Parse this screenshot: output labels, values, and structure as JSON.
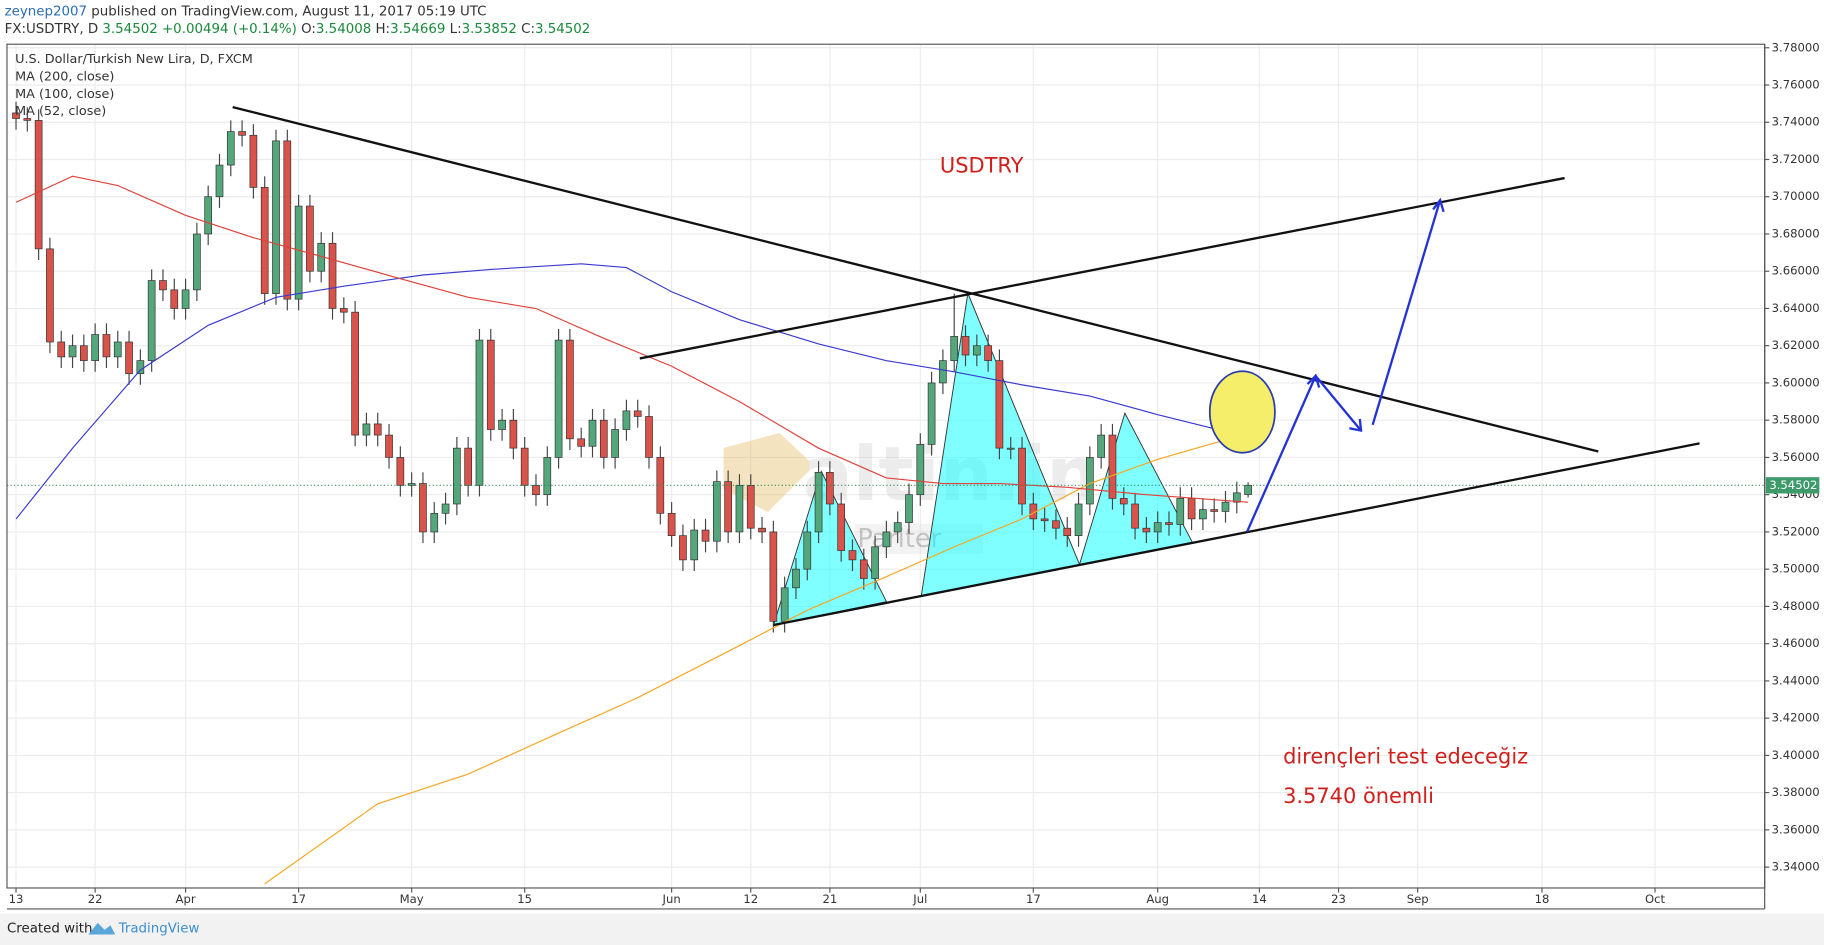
{
  "header": {
    "author": "zeynep2007",
    "published": "published on TradingView.com, August 11, 2017 05:19 UTC",
    "symbol": "FX:USDTRY, D",
    "change": "+0.00494 (+0.14%)",
    "ohlc_labels": [
      "O:",
      "H:",
      "L:",
      "C:"
    ]
  },
  "chart_data": {
    "type": "candlestick",
    "title": "U.S. Dollar/Turkish New Lira, D, FXCM",
    "up_color": "#53a77a",
    "down_color": "#d9534a",
    "grid": true,
    "xlim": [
      -0.8,
      154.7
    ],
    "ylim": [
      3.3288,
      3.7819
    ],
    "xticks": [
      {
        "value": 0,
        "label": "13"
      },
      {
        "value": 7,
        "label": "22"
      },
      {
        "value": 15,
        "label": "Apr"
      },
      {
        "value": 25,
        "label": "17"
      },
      {
        "value": 35,
        "label": "May"
      },
      {
        "value": 45,
        "label": "15"
      },
      {
        "value": 58,
        "label": "Jun"
      },
      {
        "value": 65,
        "label": "12"
      },
      {
        "value": 72,
        "label": "21"
      },
      {
        "value": 80,
        "label": "Jul"
      },
      {
        "value": 90,
        "label": "17"
      },
      {
        "value": 101,
        "label": "Aug"
      },
      {
        "value": 110,
        "label": "14"
      },
      {
        "value": 117,
        "label": "23"
      },
      {
        "value": 124,
        "label": "Sep"
      },
      {
        "value": 135,
        "label": "18"
      },
      {
        "value": 145,
        "label": "Oct"
      }
    ],
    "yticks": [
      {
        "value": 3.34,
        "label": "3.34000"
      },
      {
        "value": 3.36,
        "label": "3.36000"
      },
      {
        "value": 3.38,
        "label": "3.38000"
      },
      {
        "value": 3.4,
        "label": "3.40000"
      },
      {
        "value": 3.42,
        "label": "3.42000"
      },
      {
        "value": 3.44,
        "label": "3.44000"
      },
      {
        "value": 3.46,
        "label": "3.46000"
      },
      {
        "value": 3.48,
        "label": "3.48000"
      },
      {
        "value": 3.5,
        "label": "3.50000"
      },
      {
        "value": 3.52,
        "label": "3.52000"
      },
      {
        "value": 3.54,
        "label": "3.54000"
      },
      {
        "value": 3.56,
        "label": "3.56000"
      },
      {
        "value": 3.58,
        "label": "3.58000"
      },
      {
        "value": 3.6,
        "label": "3.60000"
      },
      {
        "value": 3.62,
        "label": "3.62000"
      },
      {
        "value": 3.64,
        "label": "3.64000"
      },
      {
        "value": 3.66,
        "label": "3.66000"
      },
      {
        "value": 3.68,
        "label": "3.68000"
      },
      {
        "value": 3.7,
        "label": "3.70000"
      },
      {
        "value": 3.72,
        "label": "3.72000"
      },
      {
        "value": 3.74,
        "label": "3.74000"
      },
      {
        "value": 3.76,
        "label": "3.76000"
      },
      {
        "value": 3.78,
        "label": "3.78000"
      }
    ],
    "candles": [
      [
        3.745,
        3.751,
        3.736,
        3.742
      ],
      [
        3.742,
        3.748,
        3.735,
        3.741
      ],
      [
        3.741,
        3.747,
        3.666,
        3.672
      ],
      [
        3.672,
        3.678,
        3.616,
        3.622
      ],
      [
        3.622,
        3.628,
        3.608,
        3.614
      ],
      [
        3.614,
        3.626,
        3.608,
        3.62
      ],
      [
        3.62,
        3.626,
        3.606,
        3.612
      ],
      [
        3.612,
        3.632,
        3.606,
        3.626
      ],
      [
        3.626,
        3.632,
        3.608,
        3.614
      ],
      [
        3.614,
        3.628,
        3.608,
        3.622
      ],
      [
        3.622,
        3.628,
        3.599,
        3.605
      ],
      [
        3.605,
        3.618,
        3.599,
        3.612
      ],
      [
        3.612,
        3.661,
        3.606,
        3.655
      ],
      [
        3.655,
        3.661,
        3.644,
        3.65
      ],
      [
        3.65,
        3.656,
        3.634,
        3.64
      ],
      [
        3.64,
        3.656,
        3.634,
        3.65
      ],
      [
        3.65,
        3.686,
        3.644,
        3.68
      ],
      [
        3.68,
        3.706,
        3.674,
        3.7
      ],
      [
        3.7,
        3.723,
        3.694,
        3.717
      ],
      [
        3.717,
        3.741,
        3.711,
        3.735
      ],
      [
        3.735,
        3.741,
        3.727,
        3.733
      ],
      [
        3.733,
        3.739,
        3.699,
        3.705
      ],
      [
        3.705,
        3.711,
        3.642,
        3.648
      ],
      [
        3.648,
        3.736,
        3.642,
        3.73
      ],
      [
        3.73,
        3.736,
        3.639,
        3.645
      ],
      [
        3.645,
        3.701,
        3.639,
        3.695
      ],
      [
        3.695,
        3.701,
        3.654,
        3.66
      ],
      [
        3.66,
        3.681,
        3.654,
        3.675
      ],
      [
        3.675,
        3.681,
        3.634,
        3.64
      ],
      [
        3.64,
        3.646,
        3.632,
        3.638
      ],
      [
        3.638,
        3.644,
        3.566,
        3.572
      ],
      [
        3.572,
        3.584,
        3.566,
        3.578
      ],
      [
        3.578,
        3.584,
        3.566,
        3.572
      ],
      [
        3.572,
        3.578,
        3.554,
        3.56
      ],
      [
        3.56,
        3.566,
        3.539,
        3.545
      ],
      [
        3.545,
        3.552,
        3.539,
        3.546
      ],
      [
        3.546,
        3.552,
        3.514,
        3.52
      ],
      [
        3.52,
        3.536,
        3.514,
        3.53
      ],
      [
        3.53,
        3.541,
        3.524,
        3.535
      ],
      [
        3.535,
        3.571,
        3.529,
        3.565
      ],
      [
        3.565,
        3.571,
        3.539,
        3.545
      ],
      [
        3.545,
        3.629,
        3.539,
        3.623
      ],
      [
        3.623,
        3.629,
        3.569,
        3.575
      ],
      [
        3.575,
        3.586,
        3.569,
        3.58
      ],
      [
        3.58,
        3.586,
        3.559,
        3.565
      ],
      [
        3.565,
        3.571,
        3.539,
        3.545
      ],
      [
        3.545,
        3.551,
        3.534,
        3.54
      ],
      [
        3.54,
        3.566,
        3.534,
        3.56
      ],
      [
        3.56,
        3.629,
        3.554,
        3.623
      ],
      [
        3.623,
        3.629,
        3.564,
        3.57
      ],
      [
        3.57,
        3.576,
        3.56,
        3.566
      ],
      [
        3.566,
        3.586,
        3.56,
        3.58
      ],
      [
        3.58,
        3.586,
        3.554,
        3.56
      ],
      [
        3.56,
        3.581,
        3.554,
        3.575
      ],
      [
        3.575,
        3.591,
        3.569,
        3.585
      ],
      [
        3.585,
        3.591,
        3.576,
        3.582
      ],
      [
        3.582,
        3.588,
        3.554,
        3.56
      ],
      [
        3.56,
        3.566,
        3.524,
        3.53
      ],
      [
        3.53,
        3.536,
        3.512,
        3.518
      ],
      [
        3.518,
        3.524,
        3.499,
        3.505
      ],
      [
        3.505,
        3.527,
        3.499,
        3.521
      ],
      [
        3.521,
        3.527,
        3.509,
        3.515
      ],
      [
        3.515,
        3.553,
        3.509,
        3.547
      ],
      [
        3.547,
        3.553,
        3.514,
        3.52
      ],
      [
        3.52,
        3.551,
        3.514,
        3.545
      ],
      [
        3.545,
        3.551,
        3.516,
        3.522
      ],
      [
        3.522,
        3.528,
        3.514,
        3.52
      ],
      [
        3.52,
        3.526,
        3.466,
        3.472
      ],
      [
        3.472,
        3.496,
        3.466,
        3.49
      ],
      [
        3.49,
        3.506,
        3.484,
        3.5
      ],
      [
        3.5,
        3.526,
        3.494,
        3.52
      ],
      [
        3.52,
        3.558,
        3.514,
        3.552
      ],
      [
        3.552,
        3.558,
        3.529,
        3.535
      ],
      [
        3.535,
        3.541,
        3.504,
        3.51
      ],
      [
        3.51,
        3.516,
        3.499,
        3.505
      ],
      [
        3.505,
        3.511,
        3.489,
        3.495
      ],
      [
        3.495,
        3.518,
        3.489,
        3.512
      ],
      [
        3.512,
        3.526,
        3.506,
        3.52
      ],
      [
        3.52,
        3.531,
        3.514,
        3.525
      ],
      [
        3.525,
        3.546,
        3.519,
        3.54
      ],
      [
        3.54,
        3.573,
        3.534,
        3.567
      ],
      [
        3.567,
        3.606,
        3.561,
        3.6
      ],
      [
        3.6,
        3.618,
        3.594,
        3.612
      ],
      [
        3.612,
        3.648,
        3.606,
        3.625
      ],
      [
        3.625,
        3.631,
        3.609,
        3.615
      ],
      [
        3.615,
        3.626,
        3.609,
        3.62
      ],
      [
        3.62,
        3.626,
        3.606,
        3.612
      ],
      [
        3.612,
        3.618,
        3.559,
        3.565
      ],
      [
        3.565,
        3.571,
        3.559,
        3.565
      ],
      [
        3.565,
        3.571,
        3.529,
        3.535
      ],
      [
        3.535,
        3.541,
        3.521,
        3.527
      ],
      [
        3.527,
        3.533,
        3.52,
        3.526
      ],
      [
        3.526,
        3.532,
        3.516,
        3.522
      ],
      [
        3.522,
        3.528,
        3.512,
        3.518
      ],
      [
        3.518,
        3.541,
        3.512,
        3.535
      ],
      [
        3.535,
        3.566,
        3.529,
        3.56
      ],
      [
        3.56,
        3.578,
        3.554,
        3.572
      ],
      [
        3.572,
        3.578,
        3.532,
        3.538
      ],
      [
        3.538,
        3.544,
        3.529,
        3.535
      ],
      [
        3.535,
        3.541,
        3.516,
        3.522
      ],
      [
        3.522,
        3.528,
        3.514,
        3.52
      ],
      [
        3.52,
        3.531,
        3.514,
        3.525
      ],
      [
        3.525,
        3.531,
        3.518,
        3.524
      ],
      [
        3.524,
        3.544,
        3.518,
        3.538
      ],
      [
        3.538,
        3.544,
        3.521,
        3.527
      ],
      [
        3.527,
        3.538,
        3.521,
        3.532
      ],
      [
        3.532,
        3.538,
        3.525,
        3.531
      ],
      [
        3.531,
        3.542,
        3.525,
        3.536
      ],
      [
        3.536,
        3.547,
        3.53,
        3.541
      ],
      [
        3.54008,
        3.54669,
        3.53852,
        3.54502
      ]
    ],
    "series": [
      {
        "name": "MA (200, close)",
        "color": "#f5a623",
        "x": [
          22,
          32,
          40,
          48,
          55,
          64,
          70,
          77,
          83,
          89,
          95,
          101,
          109
        ],
        "values": [
          3.331,
          3.374,
          3.39,
          3.412,
          3.431,
          3.459,
          3.478,
          3.496,
          3.512,
          3.527,
          3.546,
          3.559,
          3.573
        ]
      },
      {
        "name": "MA (100, close)",
        "color": "#3a3ad0",
        "x": [
          0,
          5,
          11,
          17,
          23,
          29,
          36,
          42,
          50,
          54,
          58,
          64,
          71,
          77,
          83,
          89,
          95,
          101,
          109
        ],
        "values": [
          3.527,
          3.565,
          3.607,
          3.631,
          3.646,
          3.652,
          3.658,
          3.661,
          3.664,
          3.662,
          3.649,
          3.634,
          3.621,
          3.612,
          3.606,
          3.599,
          3.593,
          3.583,
          3.571
        ]
      },
      {
        "name": "MA (52, close)",
        "color": "#e0413a",
        "x": [
          0,
          5,
          9,
          15,
          21,
          27,
          34,
          40,
          46,
          52,
          58,
          64,
          71,
          77,
          82,
          87,
          93,
          100,
          109
        ],
        "values": [
          3.697,
          3.711,
          3.706,
          3.69,
          3.678,
          3.668,
          3.656,
          3.646,
          3.64,
          3.624,
          3.609,
          3.59,
          3.565,
          3.549,
          3.546,
          3.546,
          3.544,
          3.54,
          3.536
        ]
      }
    ],
    "annotations": [
      "USDTRY",
      "dirençleri test edeceğiz",
      "3.5740 önemli"
    ],
    "watermark": [
      "altin.in",
      "Pariter"
    ]
  },
  "footer": {
    "created": "Created with",
    "brand": "TradingView"
  }
}
